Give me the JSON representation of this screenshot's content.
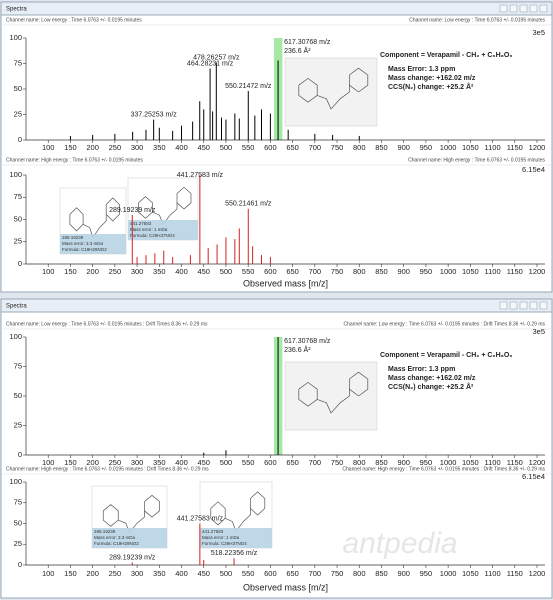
{
  "panels": [
    {
      "title": "Spectra"
    },
    {
      "title": "Spectra"
    }
  ],
  "watermark": "antpedia",
  "chart_data": [
    {
      "type": "stick",
      "header_left": "Channel name: Low energy : Time 6.0763 +/- 0.0195 minutes",
      "header_right": "Channel name: Low energy : Time 6.0763 +/- 0.0195 minutes",
      "scale_label": "3e5",
      "color": "#000000",
      "x": [
        150,
        200,
        250,
        290,
        320,
        337.25253,
        350,
        380,
        400,
        425,
        441,
        450,
        464.28231,
        470,
        478.26257,
        490,
        500,
        520,
        530,
        550.21472,
        565,
        580,
        600,
        617.30768,
        640,
        700,
        740,
        800
      ],
      "values": [
        4,
        5,
        6,
        8,
        10,
        20,
        12,
        9,
        14,
        18,
        38,
        30,
        70,
        28,
        76,
        22,
        20,
        26,
        21,
        48,
        24,
        30,
        26,
        78,
        10,
        6,
        5,
        4
      ],
      "peak_labels": [
        null,
        null,
        null,
        null,
        null,
        "337.25253 m/z",
        null,
        null,
        null,
        null,
        null,
        null,
        "464.28231 m/z",
        null,
        "478.26257 m/z",
        null,
        null,
        null,
        null,
        "550.21472 m/z",
        null,
        null,
        null,
        "617.30768 m/z",
        null,
        null,
        null,
        null
      ],
      "ccs_labels": [
        null,
        null,
        null,
        null,
        null,
        null,
        null,
        null,
        null,
        null,
        null,
        null,
        null,
        null,
        null,
        null,
        null,
        null,
        null,
        null,
        null,
        null,
        null,
        "236.6 Å²",
        null,
        null,
        null,
        null
      ],
      "highlight_range": [
        608,
        627
      ],
      "highlight_color": "#7fe07f",
      "component": {
        "title": "Component = Verapamil - CH₂ + C₆H₈O₆",
        "lines": [
          "Mass Error: 1.3 ppm",
          "Mass change: +162.02 m/z",
          "CCS(N₂) change: +25.2 Å²"
        ]
      },
      "xlim": [
        50,
        1200
      ],
      "ylim": [
        0,
        100
      ],
      "xticks": [
        100,
        150,
        200,
        250,
        300,
        350,
        400,
        450,
        500,
        550,
        600,
        650,
        700,
        750,
        800,
        850,
        900,
        950,
        1000,
        1050,
        1100,
        1150,
        1200
      ],
      "yticks": [
        0,
        25,
        50,
        75,
        100
      ]
    },
    {
      "type": "stick",
      "header_left": "Channel name: High energy : Time 6.0763 +/- 0.0195 minutes",
      "header_right": "Channel name: High energy : Time 6.0763 +/- 0.0195 minutes",
      "scale_label": "6.15e4",
      "color": "#d42020",
      "x": [
        289.19239,
        300,
        320,
        340,
        360,
        380,
        420,
        441.27583,
        460,
        480,
        500,
        520,
        530,
        550.21461,
        560,
        580,
        600
      ],
      "values": [
        55,
        8,
        10,
        12,
        15,
        8,
        10,
        100,
        18,
        22,
        30,
        28,
        40,
        62,
        20,
        10,
        8
      ],
      "peak_labels": [
        "289.19239 m/z",
        null,
        null,
        null,
        null,
        null,
        null,
        "441.27583 m/z",
        null,
        null,
        null,
        null,
        null,
        "550.21461 m/z",
        null,
        null,
        null
      ],
      "info_boxes": [
        {
          "lines": [
            "289.19239",
            "Mass error: 3.3 mDa",
            "Formula: C19H29NO2"
          ]
        },
        {
          "lines": [
            "441.27583",
            "Mass error: 1 mDa",
            "Formula: C29H37NO4"
          ]
        }
      ],
      "x_label": "Observed mass [m/z]",
      "xlim": [
        50,
        1200
      ],
      "ylim": [
        0,
        100
      ],
      "xticks": [
        100,
        150,
        200,
        250,
        300,
        350,
        400,
        450,
        500,
        550,
        600,
        650,
        700,
        750,
        800,
        850,
        900,
        950,
        1000,
        1050,
        1100,
        1150,
        1200
      ],
      "yticks": [
        0,
        25,
        50,
        75,
        100
      ]
    },
    {
      "type": "stick",
      "header_left": "Channel name: Low energy : Time 6.0763 +/- 0.0195 minutes : Drift Times 8.36 +/- 0.29 ms",
      "header_right": "Channel name: Low energy : Time 6.0763 +/- 0.0195 minutes : Drift Times 8.36 +/- 0.29 ms",
      "scale_label": "3e5",
      "color": "#000000",
      "x": [
        450,
        500,
        617.30768
      ],
      "values": [
        2,
        4,
        100
      ],
      "peak_labels": [
        null,
        null,
        "617.30768 m/z"
      ],
      "ccs_labels": [
        null,
        null,
        "236.6 Å²"
      ],
      "highlight_range": [
        608,
        627
      ],
      "highlight_color": "#7fe07f",
      "component": {
        "title": "Component = Verapamil - CH₂ + C₆H₈O₆",
        "lines": [
          "Mass Error: 1.3 ppm",
          "Mass change: +162.02 m/z",
          "CCS(N₂) change: +25.2 Å²"
        ]
      },
      "xlim": [
        50,
        1200
      ],
      "ylim": [
        0,
        100
      ],
      "xticks": [
        100,
        150,
        200,
        250,
        300,
        350,
        400,
        450,
        500,
        550,
        600,
        650,
        700,
        750,
        800,
        850,
        900,
        950,
        1000,
        1050,
        1100,
        1150,
        1200
      ],
      "yticks": [
        0,
        25,
        50,
        75,
        100
      ]
    },
    {
      "type": "stick",
      "header_left": "Channel name: High energy : Time 6.0763 +/- 0.0195 minutes : Drift Times 8.36 +/- 0.29 ms",
      "header_right": "Channel name: High energy : Time 6.0763 +/- 0.0195 minutes : Drift Times 8.36 +/- 0.29 ms",
      "scale_label": "6.15e4",
      "color": "#d42020",
      "x": [
        289.19239,
        441.27583,
        450,
        518.22356
      ],
      "values": [
        3,
        50,
        6,
        8
      ],
      "peak_labels": [
        "289.19239 m/z",
        "441.27583 m/z",
        null,
        "518.22356 m/z"
      ],
      "info_boxes": [
        {
          "lines": [
            "289.19239",
            "Mass error: 3.3 mDa",
            "Formula: C19H29NO2"
          ]
        },
        {
          "lines": [
            "441.27583",
            "Mass error: 1 mDa",
            "Formula: C29H37NO4"
          ]
        }
      ],
      "x_label": "Observed mass [m/z]",
      "xlim": [
        50,
        1200
      ],
      "ylim": [
        0,
        100
      ],
      "xticks": [
        100,
        150,
        200,
        250,
        300,
        350,
        400,
        450,
        500,
        550,
        600,
        650,
        700,
        750,
        800,
        850,
        900,
        950,
        1000,
        1050,
        1100,
        1150,
        1200
      ],
      "yticks": [
        0,
        25,
        50,
        75,
        100
      ]
    }
  ]
}
